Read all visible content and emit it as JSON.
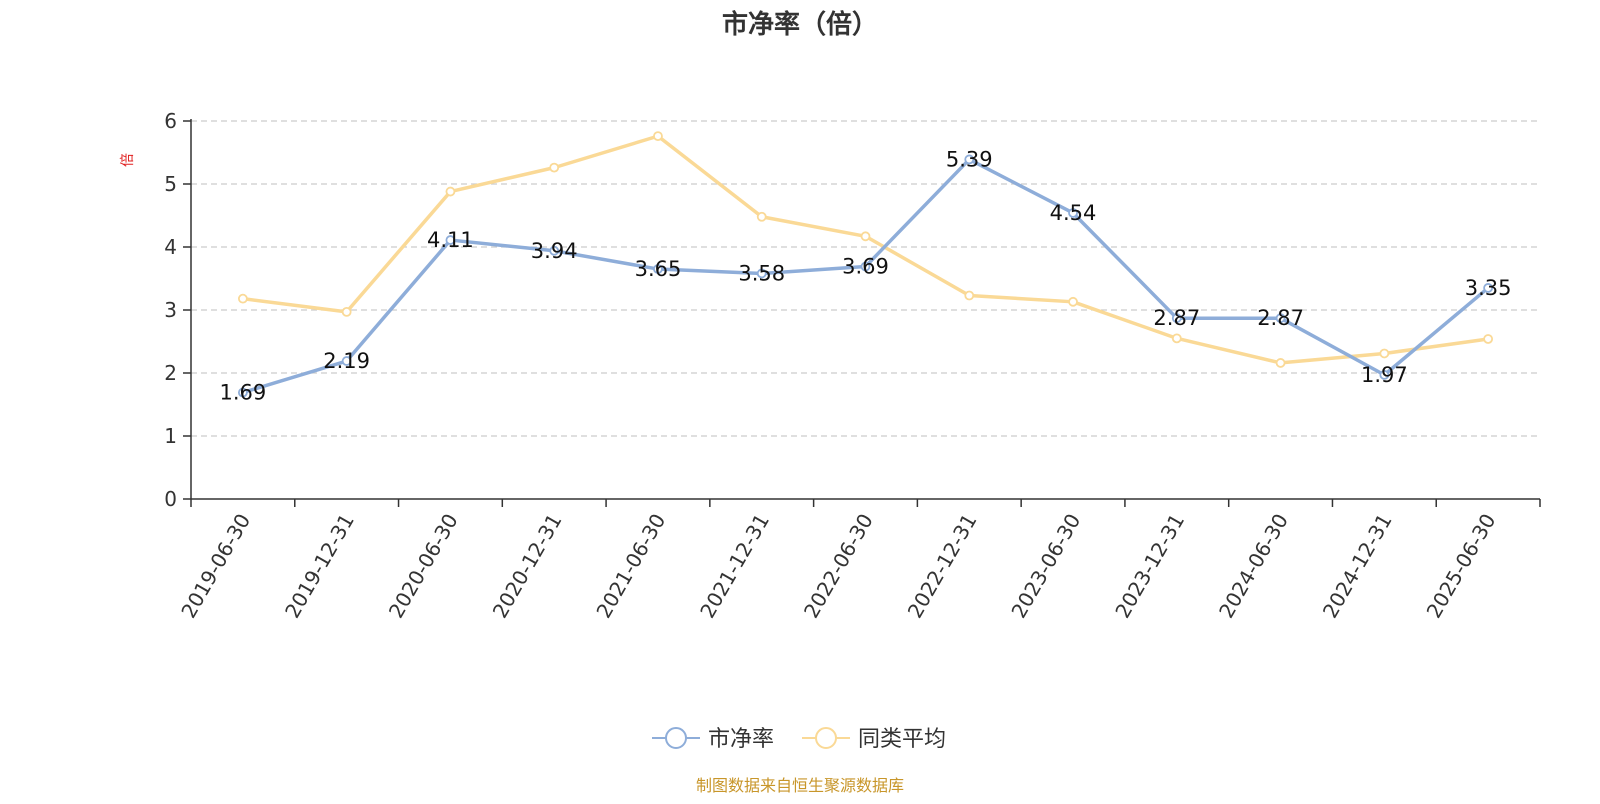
{
  "chart_data": {
    "type": "line",
    "title": "市净率（倍）",
    "ylabel": "倍",
    "xlabel": "",
    "categories": [
      "2019-06-30",
      "2019-12-31",
      "2020-06-30",
      "2020-12-31",
      "2021-06-30",
      "2021-12-31",
      "2022-06-30",
      "2022-12-31",
      "2023-06-30",
      "2023-12-31",
      "2024-06-30",
      "2024-12-31",
      "2025-06-30"
    ],
    "ylim": [
      0,
      6
    ],
    "yticks": [
      "0",
      "1",
      "2",
      "3",
      "4",
      "5",
      "6"
    ],
    "grid": true,
    "legend_position": "bottom-center",
    "series": [
      {
        "name": "市净率",
        "color": "#8eadd9",
        "values": [
          1.69,
          2.19,
          4.11,
          3.94,
          3.65,
          3.58,
          3.69,
          5.39,
          4.54,
          2.87,
          2.87,
          1.97,
          3.35
        ],
        "labels": [
          "1.69",
          "2.19",
          "4.11",
          "3.94",
          "3.65",
          "3.58",
          "3.69",
          "5.39",
          "4.54",
          "2.87",
          "2.87",
          "1.97",
          "3.35"
        ]
      },
      {
        "name": "同类平均",
        "color": "#fad996",
        "values": [
          3.18,
          2.97,
          4.88,
          5.26,
          5.76,
          4.48,
          4.17,
          3.23,
          3.13,
          2.55,
          2.16,
          2.31,
          2.54
        ]
      }
    ]
  },
  "source_text": "制图数据来自恒生聚源数据库"
}
